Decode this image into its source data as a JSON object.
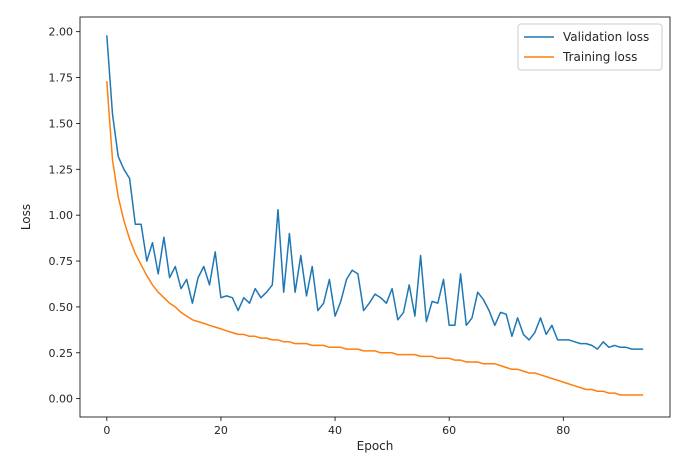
{
  "chart_data": {
    "type": "line",
    "xlabel": "Epoch",
    "ylabel": "Loss",
    "xlim": [
      -4.7,
      98.7
    ],
    "ylim": [
      -0.1,
      2.08
    ],
    "xticks": [
      0,
      20,
      40,
      60,
      80
    ],
    "yticks": [
      0.0,
      0.25,
      0.5,
      0.75,
      1.0,
      1.25,
      1.5,
      1.75,
      2.0
    ],
    "ytick_labels": [
      "0.00",
      "0.25",
      "0.50",
      "0.75",
      "1.00",
      "1.25",
      "1.50",
      "1.75",
      "2.00"
    ],
    "grid": false,
    "legend_position": "top-right",
    "series": [
      {
        "name": "Validation loss",
        "color": "#1f77b4",
        "x": [
          0,
          1,
          2,
          3,
          4,
          5,
          6,
          7,
          8,
          9,
          10,
          11,
          12,
          13,
          14,
          15,
          16,
          17,
          18,
          19,
          20,
          21,
          22,
          23,
          24,
          25,
          26,
          27,
          28,
          29,
          30,
          31,
          32,
          33,
          34,
          35,
          36,
          37,
          38,
          39,
          40,
          41,
          42,
          43,
          44,
          45,
          46,
          47,
          48,
          49,
          50,
          51,
          52,
          53,
          54,
          55,
          56,
          57,
          58,
          59,
          60,
          61,
          62,
          63,
          64,
          65,
          66,
          67,
          68,
          69,
          70,
          71,
          72,
          73,
          74,
          75,
          76,
          77,
          78,
          79,
          80,
          81,
          82,
          83,
          84,
          85,
          86,
          87,
          88,
          89,
          90,
          91,
          92,
          93,
          94
        ],
        "y": [
          1.98,
          1.55,
          1.32,
          1.25,
          1.2,
          0.95,
          0.95,
          0.75,
          0.85,
          0.68,
          0.88,
          0.66,
          0.72,
          0.6,
          0.65,
          0.52,
          0.66,
          0.72,
          0.62,
          0.8,
          0.55,
          0.56,
          0.55,
          0.48,
          0.55,
          0.52,
          0.6,
          0.55,
          0.58,
          0.62,
          1.03,
          0.58,
          0.9,
          0.58,
          0.78,
          0.56,
          0.72,
          0.48,
          0.52,
          0.65,
          0.45,
          0.53,
          0.65,
          0.7,
          0.68,
          0.48,
          0.52,
          0.57,
          0.55,
          0.52,
          0.6,
          0.43,
          0.47,
          0.62,
          0.45,
          0.78,
          0.42,
          0.53,
          0.52,
          0.65,
          0.4,
          0.4,
          0.68,
          0.4,
          0.44,
          0.58,
          0.54,
          0.48,
          0.4,
          0.47,
          0.46,
          0.34,
          0.44,
          0.35,
          0.32,
          0.36,
          0.44,
          0.35,
          0.4,
          0.32,
          0.32,
          0.32,
          0.31,
          0.3,
          0.3,
          0.29,
          0.27,
          0.31,
          0.28,
          0.29,
          0.28,
          0.28,
          0.27,
          0.27,
          0.27
        ]
      },
      {
        "name": "Training loss",
        "color": "#ff7f0e",
        "x": [
          0,
          1,
          2,
          3,
          4,
          5,
          6,
          7,
          8,
          9,
          10,
          11,
          12,
          13,
          14,
          15,
          16,
          17,
          18,
          19,
          20,
          21,
          22,
          23,
          24,
          25,
          26,
          27,
          28,
          29,
          30,
          31,
          32,
          33,
          34,
          35,
          36,
          37,
          38,
          39,
          40,
          41,
          42,
          43,
          44,
          45,
          46,
          47,
          48,
          49,
          50,
          51,
          52,
          53,
          54,
          55,
          56,
          57,
          58,
          59,
          60,
          61,
          62,
          63,
          64,
          65,
          66,
          67,
          68,
          69,
          70,
          71,
          72,
          73,
          74,
          75,
          76,
          77,
          78,
          79,
          80,
          81,
          82,
          83,
          84,
          85,
          86,
          87,
          88,
          89,
          90,
          91,
          92,
          93,
          94
        ],
        "y": [
          1.73,
          1.3,
          1.1,
          0.97,
          0.87,
          0.79,
          0.73,
          0.67,
          0.62,
          0.58,
          0.55,
          0.52,
          0.5,
          0.47,
          0.45,
          0.43,
          0.42,
          0.41,
          0.4,
          0.39,
          0.38,
          0.37,
          0.36,
          0.35,
          0.35,
          0.34,
          0.34,
          0.33,
          0.33,
          0.32,
          0.32,
          0.31,
          0.31,
          0.3,
          0.3,
          0.3,
          0.29,
          0.29,
          0.29,
          0.28,
          0.28,
          0.28,
          0.27,
          0.27,
          0.27,
          0.26,
          0.26,
          0.26,
          0.25,
          0.25,
          0.25,
          0.24,
          0.24,
          0.24,
          0.24,
          0.23,
          0.23,
          0.23,
          0.22,
          0.22,
          0.22,
          0.21,
          0.21,
          0.2,
          0.2,
          0.2,
          0.19,
          0.19,
          0.19,
          0.18,
          0.17,
          0.16,
          0.16,
          0.15,
          0.14,
          0.14,
          0.13,
          0.12,
          0.11,
          0.1,
          0.09,
          0.08,
          0.07,
          0.06,
          0.05,
          0.05,
          0.04,
          0.04,
          0.03,
          0.03,
          0.02,
          0.02,
          0.02,
          0.02,
          0.02
        ]
      }
    ]
  }
}
